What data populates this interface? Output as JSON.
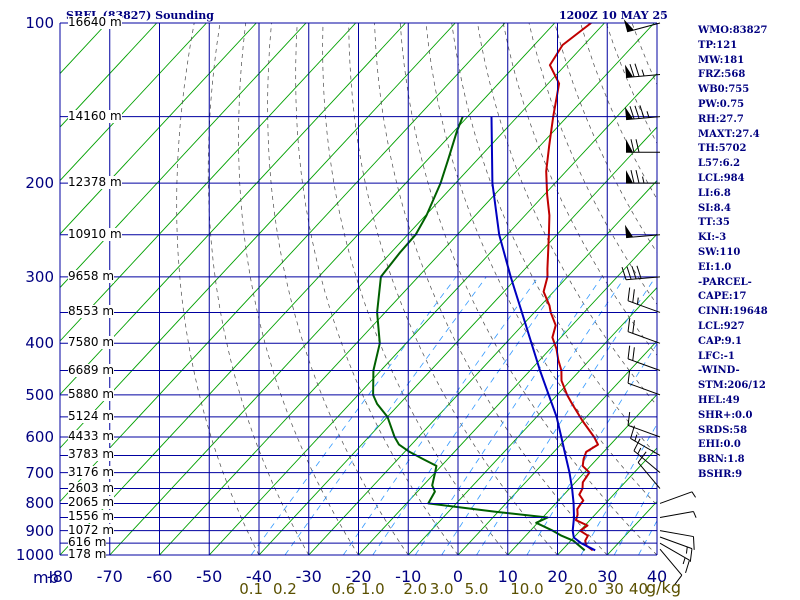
{
  "header": {
    "station": "SBFL (83827) Sounding",
    "time": "1200Z 10 MAY 25"
  },
  "colors": {
    "grid": "#0000a0",
    "temperature": "#c00000",
    "dewpoint": "#006000",
    "parcel": "#0000c0",
    "dry_adiabat": "#00a000",
    "moist_adiabat": "#4a4a4a",
    "mixing_ratio": "#3399ff",
    "text": "#000080",
    "mixing_ratio_text": "#5a5000"
  },
  "indices": [
    "WMO:83827",
    "TP:121",
    "MW:181",
    "FRZ:568",
    "WB0:755",
    "PW:0.75",
    "RH:27.7",
    "MAXT:27.4",
    "TH:5702",
    "L57:6.2",
    "LCL:984",
    "LI:6.8",
    "SI:8.4",
    "TT:35",
    "KI:-3",
    "SW:110",
    "EI:1.0",
    "-PARCEL-",
    "CAPE:17",
    "CINH:19648",
    "LCL:927",
    "CAP:9.1",
    "LFC:-1",
    "-WIND-",
    "STM:206/12",
    "HEL:49",
    "SHR+:0.0",
    "SRDS:58",
    "EHI:0.0",
    "BRN:1.8",
    "BSHR:9"
  ],
  "units": {
    "pressure": "mb",
    "mixing_ratio": "g/kg"
  },
  "chart_data": {
    "type": "line",
    "subtype": "skew-t log-p",
    "xlim": [
      -80,
      40
    ],
    "ylim": [
      1000,
      100
    ],
    "y_scale": "log",
    "grid": true,
    "pressure_ticks": [
      "100",
      "200",
      "300",
      "400",
      "500",
      "600",
      "700",
      "800",
      "900",
      "1000"
    ],
    "temperature_ticks": [
      "-80",
      "-70",
      "-60",
      "-50",
      "-40",
      "-30",
      "-20",
      "-10",
      "0",
      "10",
      "20",
      "30",
      "40"
    ],
    "mixing_ratio_labels": [
      {
        "label": "0.1",
        "value": 0.1
      },
      {
        "label": "0.2",
        "value": 0.2
      },
      {
        "label": "0.6",
        "value": 0.6
      },
      {
        "label": "1.0",
        "value": 1.0
      },
      {
        "label": "2.0",
        "value": 2.0
      },
      {
        "label": "3.0",
        "value": 3.0
      },
      {
        "label": "5.0",
        "value": 5.0
      },
      {
        "label": "10.0",
        "value": 10.0
      },
      {
        "label": "20.0",
        "value": 20.0
      },
      {
        "label": "30",
        "value": 30
      },
      {
        "label": "40",
        "value": 40
      }
    ],
    "height_labels": [
      {
        "p": 100,
        "label": "16640 m"
      },
      {
        "p": 150,
        "label": "14160 m"
      },
      {
        "p": 200,
        "label": "12378 m"
      },
      {
        "p": 250,
        "label": "10910 m"
      },
      {
        "p": 300,
        "label": "9658 m"
      },
      {
        "p": 350,
        "label": "8553 m"
      },
      {
        "p": 400,
        "label": "7580 m"
      },
      {
        "p": 450,
        "label": "6689 m"
      },
      {
        "p": 500,
        "label": "5880 m"
      },
      {
        "p": 550,
        "label": "5124 m"
      },
      {
        "p": 600,
        "label": "4433 m"
      },
      {
        "p": 650,
        "label": "3783 m"
      },
      {
        "p": 700,
        "label": "3176 m"
      },
      {
        "p": 750,
        "label": "2603 m"
      },
      {
        "p": 800,
        "label": "2065 m"
      },
      {
        "p": 850,
        "label": "1556 m"
      },
      {
        "p": 900,
        "label": "1072 m"
      },
      {
        "p": 950,
        "label": "616 m"
      },
      {
        "p": 1000,
        "label": "178 m"
      }
    ],
    "series": [
      {
        "key": "temperature",
        "points": [
          {
            "p": 980,
            "t": 26.2
          },
          {
            "p": 960,
            "t": 24.0
          },
          {
            "p": 940,
            "t": 22.9
          },
          {
            "p": 920,
            "t": 22.5
          },
          {
            "p": 900,
            "t": 20.0
          },
          {
            "p": 880,
            "t": 20.5
          },
          {
            "p": 860,
            "t": 17.2
          },
          {
            "p": 840,
            "t": 16.5
          },
          {
            "p": 820,
            "t": 15.4
          },
          {
            "p": 800,
            "t": 15.1
          },
          {
            "p": 790,
            "t": 15.0
          },
          {
            "p": 770,
            "t": 13.1
          },
          {
            "p": 750,
            "t": 12.6
          },
          {
            "p": 730,
            "t": 11.5
          },
          {
            "p": 700,
            "t": 11.0
          },
          {
            "p": 680,
            "t": 8.4
          },
          {
            "p": 660,
            "t": 7.3
          },
          {
            "p": 640,
            "t": 6.5
          },
          {
            "p": 620,
            "t": 7.5
          },
          {
            "p": 600,
            "t": 5.3
          },
          {
            "p": 560,
            "t": 0.0
          },
          {
            "p": 520,
            "t": -5.3
          },
          {
            "p": 500,
            "t": -8.0
          },
          {
            "p": 470,
            "t": -11.8
          },
          {
            "p": 450,
            "t": -13.7
          },
          {
            "p": 430,
            "t": -16.3
          },
          {
            "p": 410,
            "t": -18.7
          },
          {
            "p": 390,
            "t": -21.7
          },
          {
            "p": 370,
            "t": -23.3
          },
          {
            "p": 350,
            "t": -26.7
          },
          {
            "p": 340,
            "t": -28.2
          },
          {
            "p": 320,
            "t": -32.0
          },
          {
            "p": 300,
            "t": -34.0
          },
          {
            "p": 290,
            "t": -35.5
          },
          {
            "p": 250,
            "t": -41.6
          },
          {
            "p": 230,
            "t": -45.1
          },
          {
            "p": 210,
            "t": -49.5
          },
          {
            "p": 190,
            "t": -54.0
          },
          {
            "p": 170,
            "t": -58.2
          },
          {
            "p": 150,
            "t": -62.8
          },
          {
            "p": 130,
            "t": -67.8
          },
          {
            "p": 120,
            "t": -73.1
          },
          {
            "p": 110,
            "t": -74.3
          },
          {
            "p": 100,
            "t": -72.7
          }
        ]
      },
      {
        "key": "dewpoint",
        "points": [
          {
            "p": 980,
            "t": 24.6
          },
          {
            "p": 940,
            "t": 20.5
          },
          {
            "p": 920,
            "t": 17.2
          },
          {
            "p": 900,
            "t": 14.5
          },
          {
            "p": 870,
            "t": 9.7
          },
          {
            "p": 850,
            "t": 11.0
          },
          {
            "p": 830,
            "t": -0.3
          },
          {
            "p": 800,
            "t": -15.6
          },
          {
            "p": 760,
            "t": -16.5
          },
          {
            "p": 740,
            "t": -18.2
          },
          {
            "p": 700,
            "t": -20.0
          },
          {
            "p": 680,
            "t": -21.0
          },
          {
            "p": 660,
            "t": -25.0
          },
          {
            "p": 640,
            "t": -29.0
          },
          {
            "p": 620,
            "t": -32.5
          },
          {
            "p": 600,
            "t": -34.8
          },
          {
            "p": 550,
            "t": -40.0
          },
          {
            "p": 520,
            "t": -44.5
          },
          {
            "p": 500,
            "t": -47.0
          },
          {
            "p": 450,
            "t": -51.5
          },
          {
            "p": 400,
            "t": -55.3
          },
          {
            "p": 350,
            "t": -61.6
          },
          {
            "p": 300,
            "t": -67.5
          },
          {
            "p": 270,
            "t": -68.2
          },
          {
            "p": 250,
            "t": -68.4
          },
          {
            "p": 230,
            "t": -69.8
          },
          {
            "p": 200,
            "t": -73.0
          },
          {
            "p": 180,
            "t": -76.0
          },
          {
            "p": 160,
            "t": -79.4
          },
          {
            "p": 150,
            "t": -81.0
          }
        ]
      },
      {
        "key": "parcel",
        "points": [
          {
            "p": 980,
            "t": 26.7
          },
          {
            "p": 950,
            "t": 22.5
          },
          {
            "p": 927,
            "t": 20.0
          },
          {
            "p": 900,
            "t": 18.5
          },
          {
            "p": 850,
            "t": 16.3
          },
          {
            "p": 800,
            "t": 13.6
          },
          {
            "p": 750,
            "t": 10.5
          },
          {
            "p": 700,
            "t": 7.0
          },
          {
            "p": 650,
            "t": 3.0
          },
          {
            "p": 600,
            "t": -1.3
          },
          {
            "p": 550,
            "t": -6.0
          },
          {
            "p": 500,
            "t": -11.7
          },
          {
            "p": 450,
            "t": -18.0
          },
          {
            "p": 400,
            "t": -24.8
          },
          {
            "p": 350,
            "t": -32.5
          },
          {
            "p": 300,
            "t": -41.4
          },
          {
            "p": 250,
            "t": -51.6
          },
          {
            "p": 200,
            "t": -62.6
          },
          {
            "p": 150,
            "t": -75.2
          }
        ]
      }
    ],
    "wind_barbs": [
      {
        "p": 975,
        "dir": 140,
        "spd": 10
      },
      {
        "p": 950,
        "dir": 120,
        "spd": 15
      },
      {
        "p": 925,
        "dir": 110,
        "spd": 15
      },
      {
        "p": 900,
        "dir": 100,
        "spd": 10
      },
      {
        "p": 850,
        "dir": 80,
        "spd": 5
      },
      {
        "p": 800,
        "dir": 70,
        "spd": 5
      },
      {
        "p": 750,
        "dir": 320,
        "spd": 10
      },
      {
        "p": 700,
        "dir": 310,
        "spd": 15
      },
      {
        "p": 650,
        "dir": 300,
        "spd": 15
      },
      {
        "p": 600,
        "dir": 290,
        "spd": 10
      },
      {
        "p": 500,
        "dir": 290,
        "spd": 10
      },
      {
        "p": 450,
        "dir": 290,
        "spd": 20
      },
      {
        "p": 400,
        "dir": 290,
        "spd": 20
      },
      {
        "p": 350,
        "dir": 290,
        "spd": 25
      },
      {
        "p": 300,
        "dir": 265,
        "spd": 40
      },
      {
        "p": 250,
        "dir": 265,
        "spd": 50
      },
      {
        "p": 200,
        "dir": 270,
        "spd": 75
      },
      {
        "p": 175,
        "dir": 270,
        "spd": 70
      },
      {
        "p": 150,
        "dir": 265,
        "spd": 85
      },
      {
        "p": 125,
        "dir": 265,
        "spd": 75
      },
      {
        "p": 100,
        "dir": 255,
        "spd": 50
      }
    ]
  }
}
